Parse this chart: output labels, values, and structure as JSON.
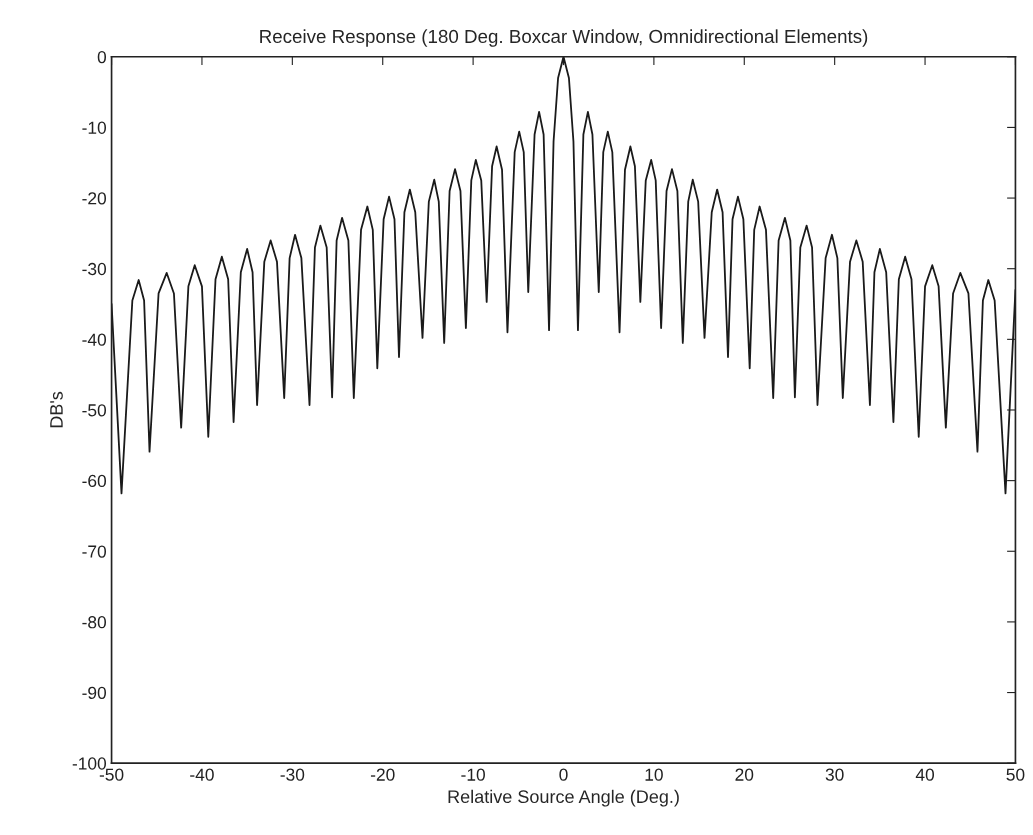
{
  "chart_data": {
    "type": "line",
    "title": "Receive Response (180 Deg. Boxcar Window, Omnidirectional Elements)",
    "xlabel": "Relative Source Angle (Deg.)",
    "ylabel": "DB's",
    "xlim": [
      -50,
      50
    ],
    "xticks": [
      -50,
      -40,
      -30,
      -20,
      -10,
      0,
      10,
      20,
      30,
      40,
      50
    ],
    "ylim": [
      -100,
      0
    ],
    "yticks": [
      -100,
      -90,
      -80,
      -70,
      -60,
      -50,
      -40,
      -30,
      -20,
      -10,
      0
    ],
    "grid": false,
    "legend": false,
    "marker": "none",
    "line_style": "solid",
    "series": [
      {
        "color": "#1a1a1a",
        "x": [
          -50,
          -48.9,
          -47.7,
          -47.0,
          -46.4,
          -45.8,
          -44.8,
          -43.9,
          -43.1,
          -42.3,
          -41.5,
          -40.8,
          -40.0,
          -39.3,
          -38.5,
          -37.8,
          -37.1,
          -36.5,
          -35.7,
          -35.0,
          -34.4,
          -33.9,
          -33.1,
          -32.4,
          -31.7,
          -30.9,
          -30.3,
          -29.7,
          -29.0,
          -28.1,
          -27.5,
          -26.9,
          -26.2,
          -25.6,
          -25.1,
          -24.5,
          -23.8,
          -23.2,
          -22.4,
          -21.7,
          -21.1,
          -20.6,
          -19.9,
          -19.3,
          -18.7,
          -18.2,
          -17.6,
          -17.0,
          -16.4,
          -15.6,
          -14.9,
          -14.3,
          -13.8,
          -13.2,
          -12.6,
          -12.0,
          -11.4,
          -10.8,
          -10.2,
          -9.7,
          -9.1,
          -8.5,
          -7.9,
          -7.4,
          -6.8,
          -6.2,
          -5.4,
          -4.9,
          -4.4,
          -3.9,
          -3.2,
          -2.7,
          -2.2,
          -1.6,
          -1.1,
          -0.6,
          0,
          0.6,
          1.1,
          1.6,
          2.2,
          2.7,
          3.2,
          3.9,
          4.4,
          4.9,
          5.4,
          6.2,
          6.8,
          7.4,
          7.9,
          8.5,
          9.1,
          9.7,
          10.2,
          10.8,
          11.4,
          12.0,
          12.6,
          13.2,
          13.8,
          14.3,
          14.9,
          15.6,
          16.4,
          17.0,
          17.6,
          18.2,
          18.7,
          19.3,
          19.9,
          20.6,
          21.1,
          21.7,
          22.4,
          23.2,
          23.8,
          24.5,
          25.1,
          25.6,
          26.2,
          26.9,
          27.5,
          28.1,
          29.0,
          29.7,
          30.3,
          30.9,
          31.7,
          32.4,
          33.1,
          33.9,
          34.4,
          35.0,
          35.7,
          36.5,
          37.1,
          37.8,
          38.5,
          39.3,
          40.0,
          40.8,
          41.5,
          42.3,
          43.1,
          43.9,
          44.8,
          45.8,
          46.4,
          47.0,
          47.7,
          48.9,
          50
        ],
        "values": [
          -35,
          -61.8,
          -34.5,
          -31.6,
          -34.5,
          -55.9,
          -33.5,
          -30.6,
          -33.5,
          -52.5,
          -32.5,
          -29.5,
          -32.5,
          -53.8,
          -31.5,
          -28.3,
          -31.5,
          -51.7,
          -30.5,
          -27.2,
          -30.5,
          -49.3,
          -29,
          -26.0,
          -29,
          -48.3,
          -28.5,
          -25.2,
          -28.5,
          -49.3,
          -27,
          -23.9,
          -27,
          -48.2,
          -26,
          -22.8,
          -26,
          -48.3,
          -24.5,
          -21.2,
          -24.5,
          -44.1,
          -23,
          -19.8,
          -23,
          -42.5,
          -22,
          -18.8,
          -22,
          -39.8,
          -20.5,
          -17.4,
          -20.5,
          -40.5,
          -19,
          -15.9,
          -19,
          -38.4,
          -17.5,
          -14.6,
          -17.5,
          -34.7,
          -15.5,
          -12.7,
          -16,
          -39,
          -13.5,
          -10.6,
          -13.5,
          -33.3,
          -11,
          -7.8,
          -11,
          -38.7,
          -12,
          -3,
          0,
          -3,
          -12,
          -38.7,
          -11,
          -7.8,
          -11,
          -33.3,
          -13.5,
          -10.6,
          -13.5,
          -39,
          -16,
          -12.7,
          -15.5,
          -34.7,
          -17.5,
          -14.6,
          -17.5,
          -38.4,
          -19,
          -15.9,
          -19,
          -40.5,
          -20.5,
          -17.4,
          -20.5,
          -39.8,
          -22,
          -18.8,
          -22,
          -42.5,
          -23,
          -19.8,
          -23,
          -44.1,
          -24.5,
          -21.2,
          -24.5,
          -48.3,
          -26,
          -22.8,
          -26,
          -48.2,
          -27,
          -23.9,
          -27,
          -49.3,
          -28.5,
          -25.2,
          -28.5,
          -48.3,
          -29,
          -26.0,
          -29,
          -49.3,
          -30.5,
          -27.2,
          -30.5,
          -51.7,
          -31.5,
          -28.3,
          -31.5,
          -53.8,
          -32.5,
          -29.5,
          -32.5,
          -52.5,
          -33.5,
          -30.6,
          -33.5,
          -55.9,
          -34.5,
          -31.6,
          -34.5,
          -61.8,
          -33
        ]
      }
    ]
  }
}
